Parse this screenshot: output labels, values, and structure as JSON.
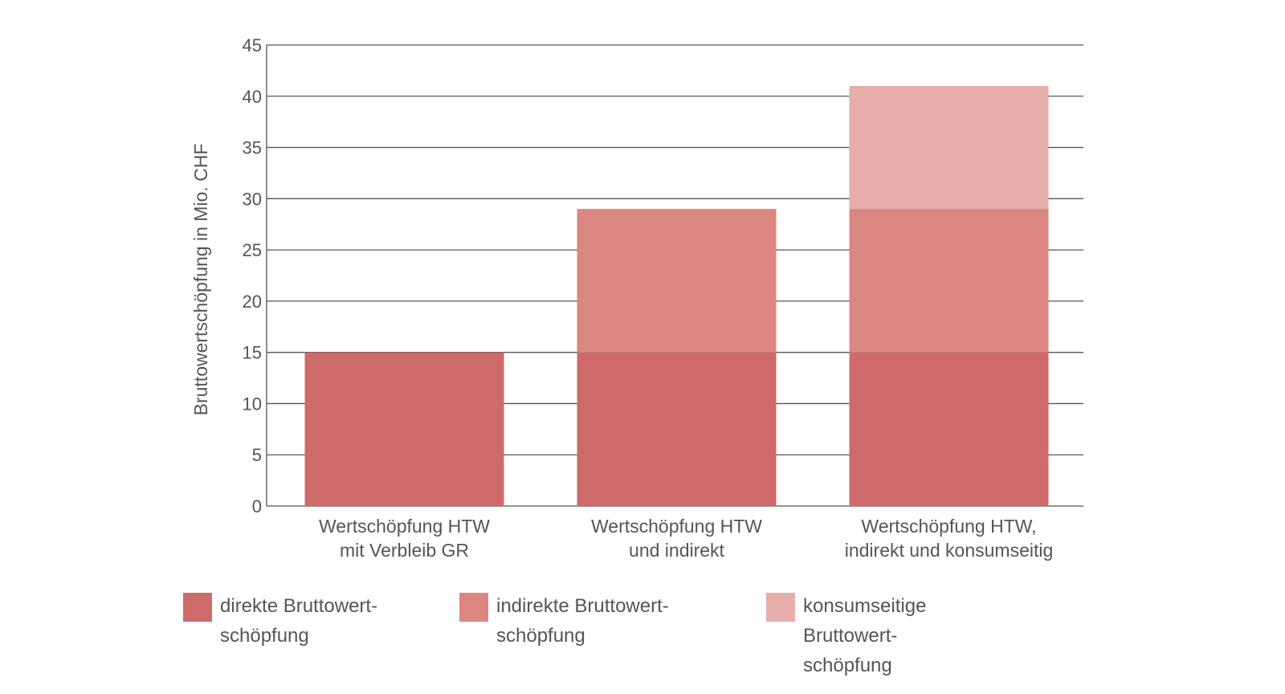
{
  "chart_data": {
    "type": "bar",
    "stacked": true,
    "categories": [
      [
        "Wertschöpfung HTW",
        "mit Verbleib GR"
      ],
      [
        "Wertschöpfung HTW",
        "und indirekt"
      ],
      [
        "Wertschöpfung HTW,",
        "indirekt und konsumseitig"
      ]
    ],
    "series": [
      {
        "name": "direkte Bruttowertschöpfung",
        "legend_lines": [
          "direkte Bruttowert-",
          "schöpfung"
        ],
        "color": "#cf6a6a",
        "values": [
          15,
          15,
          15
        ]
      },
      {
        "name": "indirekte Bruttowertschöpfung",
        "legend_lines": [
          "indirekte Bruttowert-",
          "schöpfung"
        ],
        "color": "#d98780",
        "values": [
          0,
          14,
          14
        ]
      },
      {
        "name": "konsumseitige Bruttowertschöpfung",
        "legend_lines": [
          "konsumseitige Bruttowert-",
          "schöpfung"
        ],
        "color": "#e7aeaa",
        "values": [
          0,
          0,
          12
        ]
      }
    ],
    "ylabel": "Bruttowertschöpfung in Mio. CHF",
    "xlabel": "",
    "ylim": [
      0,
      45
    ],
    "yticks": [
      0,
      5,
      10,
      15,
      20,
      25,
      30,
      35,
      40,
      45
    ],
    "grid": true,
    "legend_position": "bottom"
  }
}
